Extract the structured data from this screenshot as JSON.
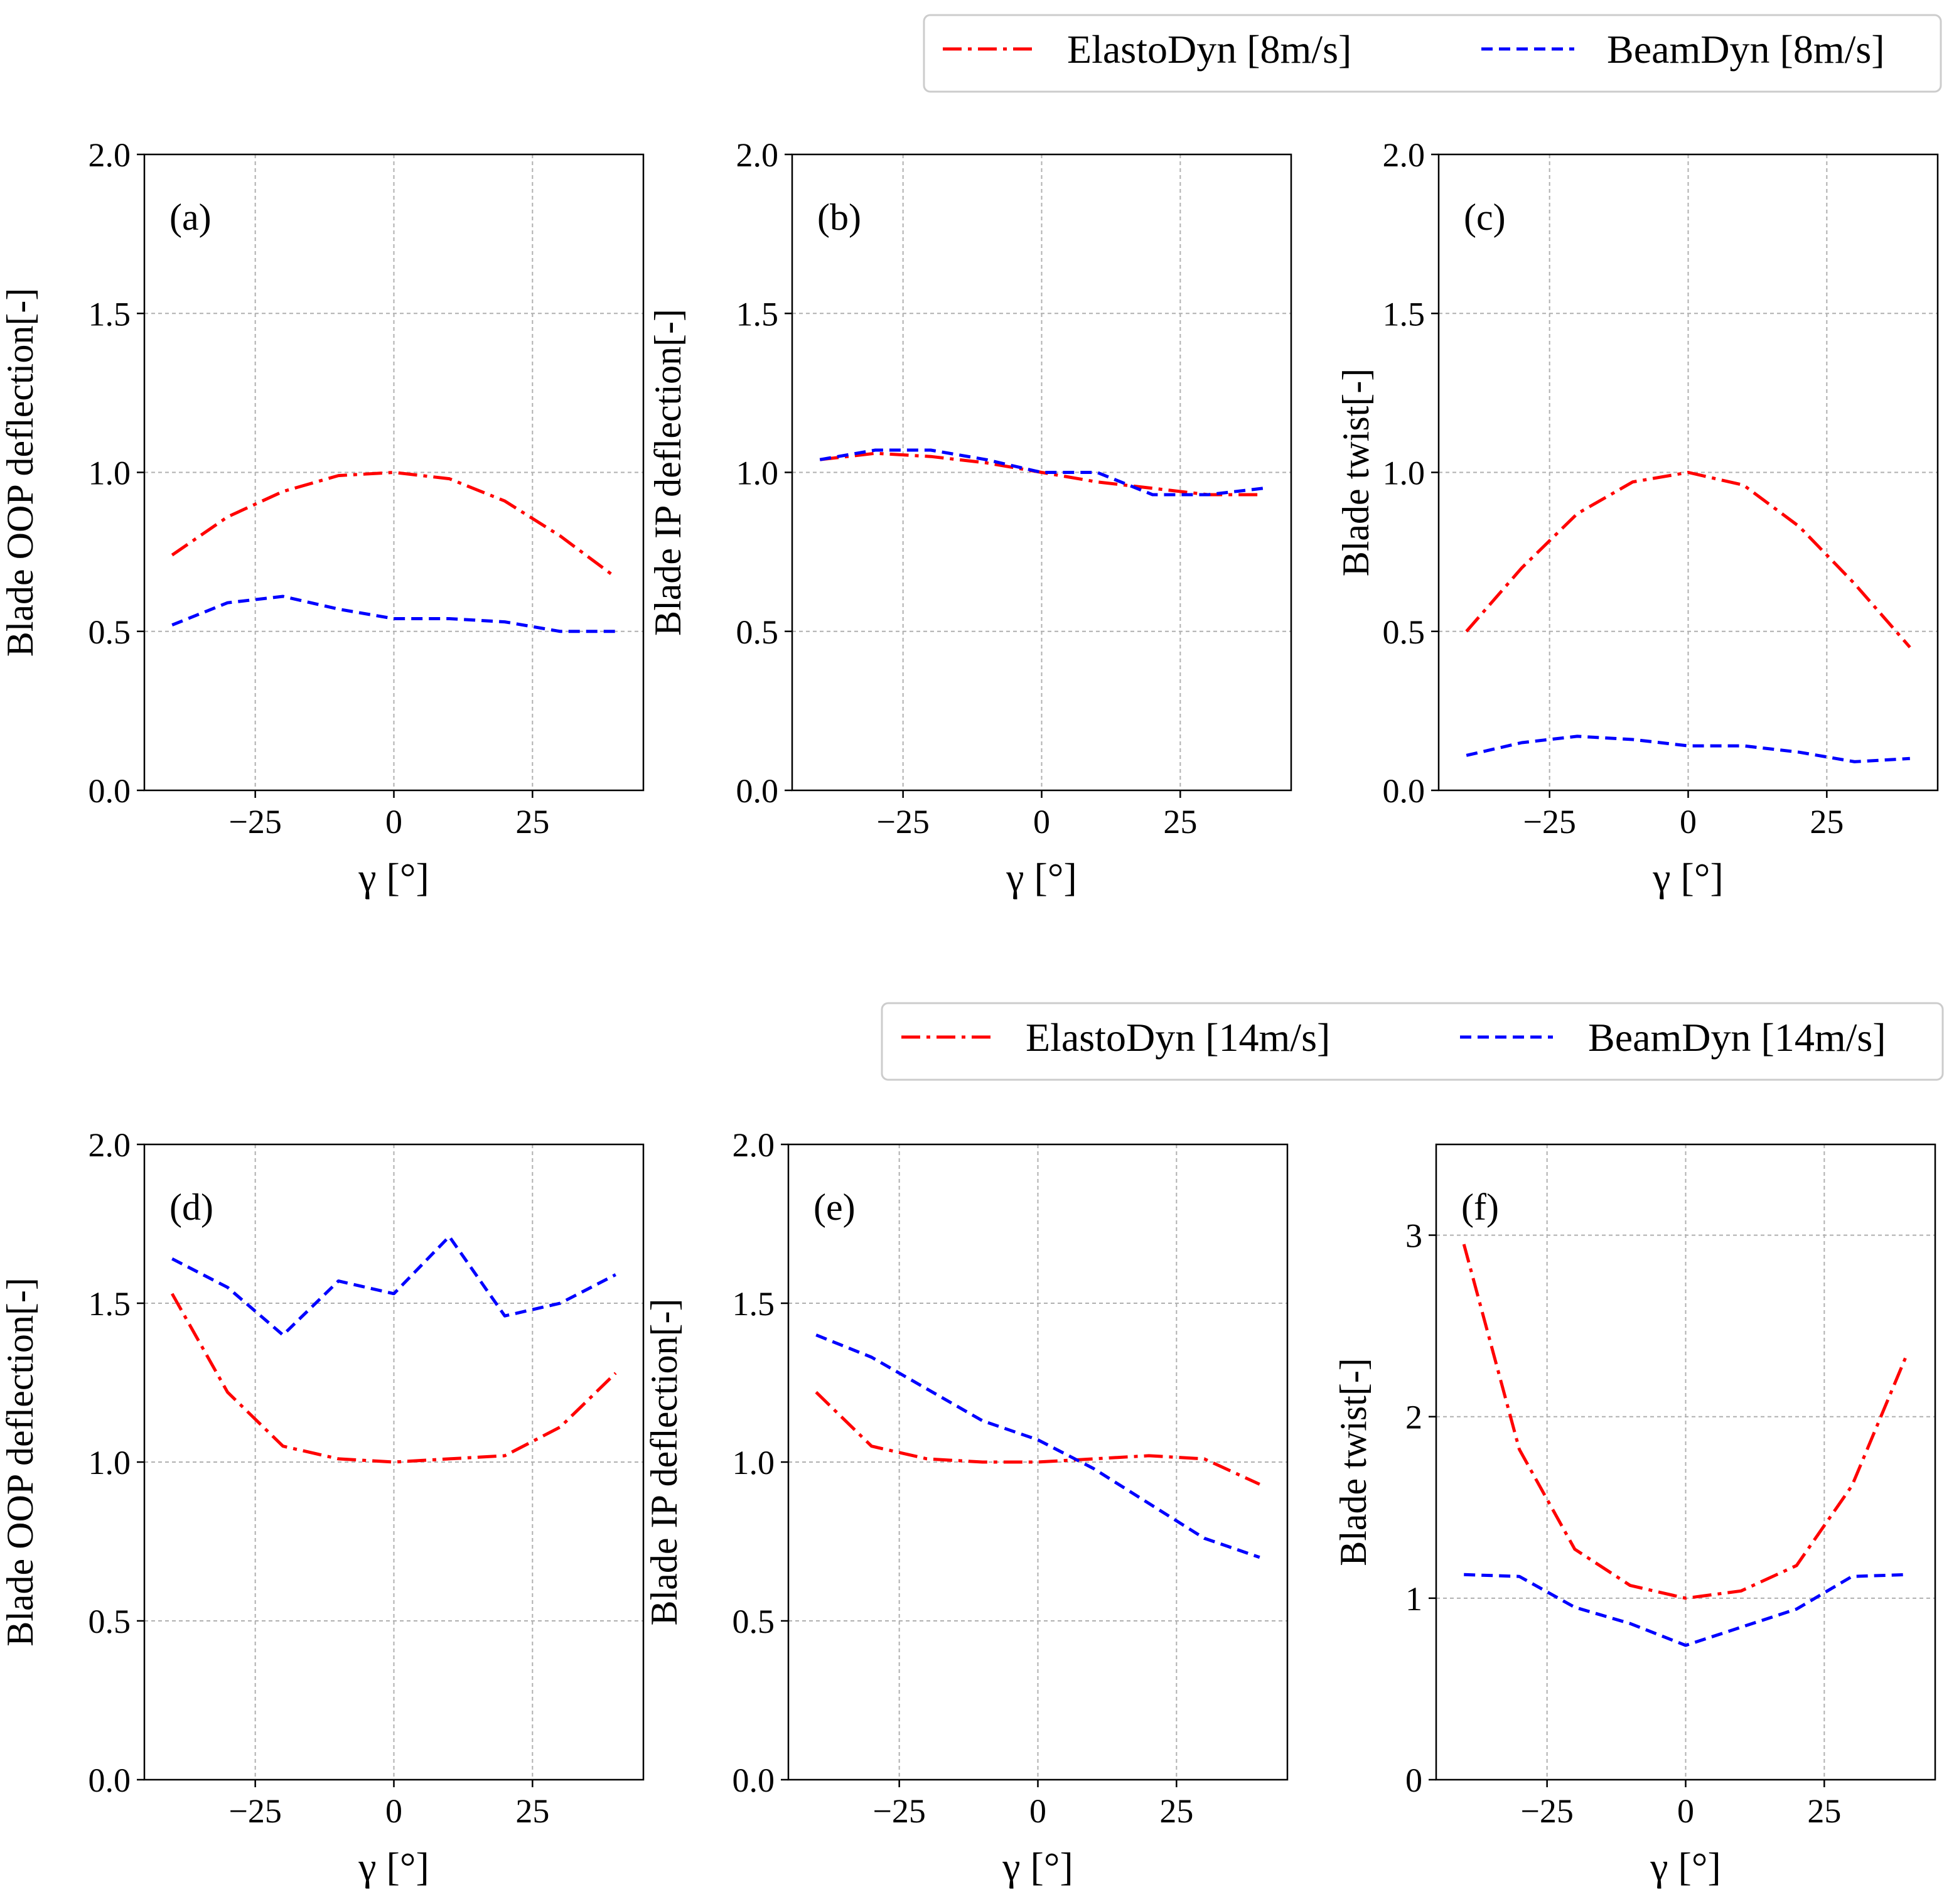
{
  "chart_data": [
    {
      "type": "line",
      "panel_label": "(a)",
      "xlabel": "γ [°]",
      "ylabel": "Blade OOP deflection[-]",
      "xlim": [
        -45,
        45
      ],
      "ylim": [
        0,
        2
      ],
      "xticks": [
        -25,
        0,
        25
      ],
      "xtick_labels": [
        "−25",
        "0",
        "25"
      ],
      "yticks": [
        0,
        0.5,
        1,
        1.5,
        2
      ],
      "ytick_labels": [
        "0.0",
        "0.5",
        "1.0",
        "1.5",
        "2.0"
      ],
      "grid": true,
      "x": [
        -40,
        -30,
        -20,
        -10,
        0,
        10,
        20,
        30,
        40
      ],
      "series": [
        {
          "name": "ElastoDyn [8m/s]",
          "color": "#ff0000",
          "style": "dashdot",
          "values": [
            0.74,
            0.86,
            0.94,
            0.99,
            1.0,
            0.98,
            0.91,
            0.8,
            0.67
          ]
        },
        {
          "name": "BeamDyn [8m/s]",
          "color": "#0000ff",
          "style": "dashed",
          "values": [
            0.52,
            0.59,
            0.61,
            0.57,
            0.54,
            0.54,
            0.53,
            0.5,
            0.5
          ]
        }
      ]
    },
    {
      "type": "line",
      "panel_label": "(b)",
      "xlabel": "γ [°]",
      "ylabel": "Blade IP deflection[-]",
      "xlim": [
        -45,
        45
      ],
      "ylim": [
        0,
        2
      ],
      "xticks": [
        -25,
        0,
        25
      ],
      "xtick_labels": [
        "−25",
        "0",
        "25"
      ],
      "yticks": [
        0,
        0.5,
        1,
        1.5,
        2
      ],
      "ytick_labels": [
        "0.0",
        "0.5",
        "1.0",
        "1.5",
        "2.0"
      ],
      "grid": true,
      "x": [
        -40,
        -30,
        -20,
        -10,
        0,
        10,
        20,
        30,
        40
      ],
      "series": [
        {
          "name": "ElastoDyn [8m/s]",
          "color": "#ff0000",
          "style": "dashdot",
          "values": [
            1.04,
            1.06,
            1.05,
            1.03,
            1.0,
            0.97,
            0.95,
            0.93,
            0.93
          ]
        },
        {
          "name": "BeamDyn [8m/s]",
          "color": "#0000ff",
          "style": "dashed",
          "values": [
            1.04,
            1.07,
            1.07,
            1.04,
            1.0,
            1.0,
            0.93,
            0.93,
            0.95
          ]
        }
      ]
    },
    {
      "type": "line",
      "panel_label": "(c)",
      "xlabel": "γ [°]",
      "ylabel": "Blade twist[-]",
      "xlim": [
        -45,
        45
      ],
      "ylim": [
        0,
        2
      ],
      "xticks": [
        -25,
        0,
        25
      ],
      "xtick_labels": [
        "−25",
        "0",
        "25"
      ],
      "yticks": [
        0,
        0.5,
        1,
        1.5,
        2
      ],
      "ytick_labels": [
        "0.0",
        "0.5",
        "1.0",
        "1.5",
        "2.0"
      ],
      "grid": true,
      "x": [
        -40,
        -30,
        -20,
        -10,
        0,
        10,
        20,
        30,
        40
      ],
      "series": [
        {
          "name": "ElastoDyn [8m/s]",
          "color": "#ff0000",
          "style": "dashdot",
          "values": [
            0.5,
            0.7,
            0.87,
            0.97,
            1.0,
            0.96,
            0.83,
            0.65,
            0.45
          ]
        },
        {
          "name": "BeamDyn [8m/s]",
          "color": "#0000ff",
          "style": "dashed",
          "values": [
            0.11,
            0.15,
            0.17,
            0.16,
            0.14,
            0.14,
            0.12,
            0.09,
            0.1
          ]
        }
      ]
    },
    {
      "type": "line",
      "panel_label": "(d)",
      "xlabel": "γ [°]",
      "ylabel": "Blade OOP deflection[-]",
      "xlim": [
        -45,
        45
      ],
      "ylim": [
        0,
        2
      ],
      "xticks": [
        -25,
        0,
        25
      ],
      "xtick_labels": [
        "−25",
        "0",
        "25"
      ],
      "yticks": [
        0,
        0.5,
        1,
        1.5,
        2
      ],
      "ytick_labels": [
        "0.0",
        "0.5",
        "1.0",
        "1.5",
        "2.0"
      ],
      "grid": true,
      "x": [
        -40,
        -30,
        -20,
        -10,
        0,
        10,
        20,
        30,
        40
      ],
      "series": [
        {
          "name": "ElastoDyn [14m/s]",
          "color": "#ff0000",
          "style": "dashdot",
          "values": [
            1.53,
            1.22,
            1.05,
            1.01,
            1.0,
            1.01,
            1.02,
            1.11,
            1.28
          ]
        },
        {
          "name": "BeamDyn [14m/s]",
          "color": "#0000ff",
          "style": "dashed",
          "values": [
            1.64,
            1.55,
            1.4,
            1.57,
            1.53,
            1.71,
            1.46,
            1.5,
            1.59
          ]
        }
      ]
    },
    {
      "type": "line",
      "panel_label": "(e)",
      "xlabel": "γ [°]",
      "ylabel": "Blade IP deflection[-]",
      "xlim": [
        -45,
        45
      ],
      "ylim": [
        0,
        2
      ],
      "xticks": [
        -25,
        0,
        25
      ],
      "xtick_labels": [
        "−25",
        "0",
        "25"
      ],
      "yticks": [
        0,
        0.5,
        1,
        1.5,
        2
      ],
      "ytick_labels": [
        "0.0",
        "0.5",
        "1.0",
        "1.5",
        "2.0"
      ],
      "grid": true,
      "x": [
        -40,
        -30,
        -20,
        -10,
        0,
        10,
        20,
        30,
        40
      ],
      "series": [
        {
          "name": "ElastoDyn [14m/s]",
          "color": "#ff0000",
          "style": "dashdot",
          "values": [
            1.22,
            1.05,
            1.01,
            1.0,
            1.0,
            1.01,
            1.02,
            1.01,
            0.93
          ]
        },
        {
          "name": "BeamDyn [14m/s]",
          "color": "#0000ff",
          "style": "dashed",
          "values": [
            1.4,
            1.33,
            1.23,
            1.13,
            1.07,
            0.98,
            0.87,
            0.76,
            0.7
          ]
        }
      ]
    },
    {
      "type": "line",
      "panel_label": "(f)",
      "xlabel": "γ [°]",
      "ylabel": "Blade twist[-]",
      "xlim": [
        -45,
        45
      ],
      "ylim": [
        0,
        3.5
      ],
      "xticks": [
        -25,
        0,
        25
      ],
      "xtick_labels": [
        "−25",
        "0",
        "25"
      ],
      "yticks": [
        0,
        1,
        2,
        3
      ],
      "ytick_labels": [
        "0",
        "1",
        "2",
        "3"
      ],
      "grid": true,
      "x": [
        -40,
        -30,
        -20,
        -10,
        0,
        10,
        20,
        30,
        40
      ],
      "series": [
        {
          "name": "ElastoDyn [14m/s]",
          "color": "#ff0000",
          "style": "dashdot",
          "values": [
            2.95,
            1.82,
            1.27,
            1.07,
            1.0,
            1.04,
            1.18,
            1.62,
            2.35
          ]
        },
        {
          "name": "BeamDyn [14m/s]",
          "color": "#0000ff",
          "style": "dashed",
          "values": [
            1.13,
            1.12,
            0.95,
            0.86,
            0.74,
            0.84,
            0.94,
            1.12,
            1.13
          ]
        }
      ]
    }
  ],
  "legends": [
    {
      "entries": [
        {
          "label": "ElastoDyn [8m/s]",
          "color": "#ff0000",
          "style": "dashdot"
        },
        {
          "label": "BeamDyn [8m/s]",
          "color": "#0000ff",
          "style": "dashed"
        }
      ]
    },
    {
      "entries": [
        {
          "label": "ElastoDyn [14m/s]",
          "color": "#ff0000",
          "style": "dashdot"
        },
        {
          "label": "BeamDyn [14m/s]",
          "color": "#0000ff",
          "style": "dashed"
        }
      ]
    }
  ]
}
